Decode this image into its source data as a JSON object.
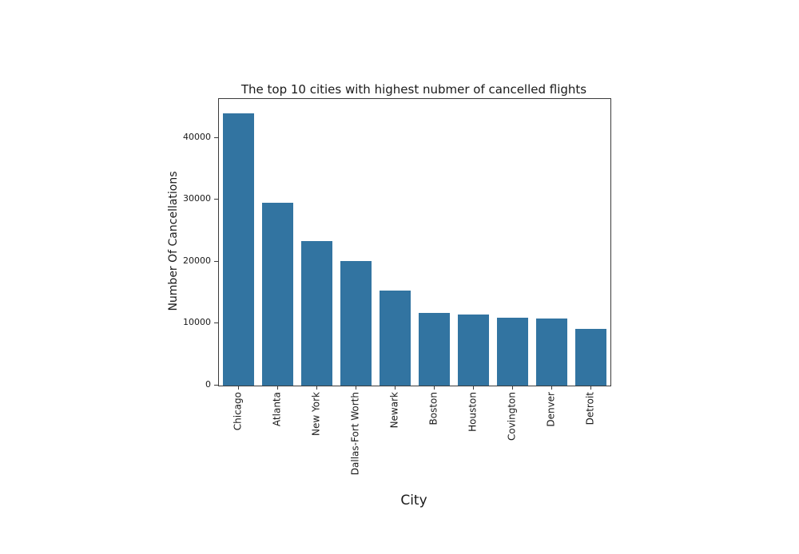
{
  "chart_data": {
    "type": "bar",
    "title": "The top 10 cities with highest nubmer of cancelled flights",
    "xlabel": "City",
    "ylabel": "Number Of Cancellations",
    "categories": [
      "Chicago",
      "Atlanta",
      "New York",
      "Dallas-Fort Worth",
      "Newark",
      "Boston",
      "Houston",
      "Covington",
      "Denver",
      "Detroit"
    ],
    "values": [
      44000,
      29600,
      23400,
      20100,
      15400,
      11800,
      11500,
      11000,
      10800,
      9100
    ],
    "yticks": [
      0,
      10000,
      20000,
      30000,
      40000
    ],
    "ylim": [
      0,
      46300
    ],
    "bar_color": "#3274a1",
    "grid": false,
    "legend": "none",
    "x_tick_rotation_deg": 90
  }
}
